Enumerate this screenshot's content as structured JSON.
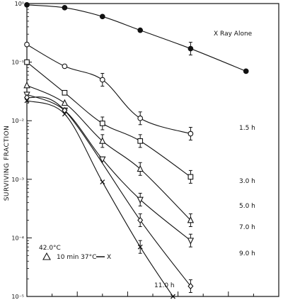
{
  "chart_data": {
    "type": "scatter",
    "title": "",
    "ylabel": "SURVIVING FRACTION",
    "xlabel": "",
    "y_scale": "log",
    "ylim": [
      1e-05,
      1
    ],
    "xlim": [
      0,
      10
    ],
    "y_tick_labels": [
      "10⁰",
      "10⁻¹",
      "10⁻²",
      "10⁻³",
      "10⁻⁴",
      "10⁻⁵"
    ],
    "x_tick_labels": [],
    "grid": false,
    "legend": {
      "placement": "bottom-left",
      "title": "42.0°C",
      "entry": "10 min 37°C",
      "entry_suffix": "X"
    },
    "series": [
      {
        "name": "X Ray Alone",
        "marker": "filled-circle",
        "x": [
          0,
          1.5,
          3.0,
          4.5,
          6.5,
          8.7
        ],
        "y": [
          0.95,
          0.85,
          0.6,
          0.35,
          0.17,
          0.07
        ],
        "err": [
          false,
          false,
          false,
          false,
          true,
          false
        ]
      },
      {
        "name": "1.5 h",
        "marker": "circle",
        "x": [
          0,
          1.5,
          3.0,
          4.5,
          6.5
        ],
        "y": [
          0.2,
          0.085,
          0.05,
          0.011,
          0.006
        ],
        "err": [
          false,
          false,
          true,
          true,
          true
        ]
      },
      {
        "name": "3.0 h",
        "marker": "square",
        "x": [
          0,
          1.5,
          3.0,
          4.5,
          6.5
        ],
        "y": [
          0.1,
          0.03,
          0.009,
          0.0045,
          0.0011
        ],
        "err": [
          false,
          false,
          true,
          true,
          true
        ]
      },
      {
        "name": "5.0 h",
        "marker": "triangle",
        "x": [
          0,
          1.5,
          3.0,
          4.5,
          6.5
        ],
        "y": [
          0.04,
          0.02,
          0.0045,
          0.0015,
          0.0002
        ],
        "err": [
          false,
          false,
          true,
          true,
          true
        ]
      },
      {
        "name": "7.0 h",
        "marker": "inverted-triangle",
        "x": [
          0,
          1.5,
          3.0,
          4.5,
          6.5
        ],
        "y": [
          0.028,
          0.015,
          0.0022,
          0.00045,
          9e-05
        ],
        "err": [
          false,
          false,
          false,
          true,
          true
        ]
      },
      {
        "name": "9.0 h",
        "marker": "diamond",
        "x": [
          0,
          1.5,
          4.5,
          6.5
        ],
        "y": [
          0.025,
          0.015,
          0.0002,
          1.5e-05
        ],
        "err": [
          false,
          false,
          true,
          true
        ]
      },
      {
        "name": "11.0 h",
        "marker": "cross",
        "x": [
          0,
          1.5,
          3.0,
          4.5,
          5.8
        ],
        "y": [
          0.022,
          0.013,
          0.0009,
          7e-05,
          1e-05
        ],
        "err": [
          false,
          false,
          false,
          true,
          false
        ]
      }
    ],
    "curve_labels": [
      "X Ray Alone",
      "1.5 h",
      "3.0 h",
      "5.0 h",
      "7.0 h",
      "9.0 h",
      "11.0 h"
    ]
  }
}
